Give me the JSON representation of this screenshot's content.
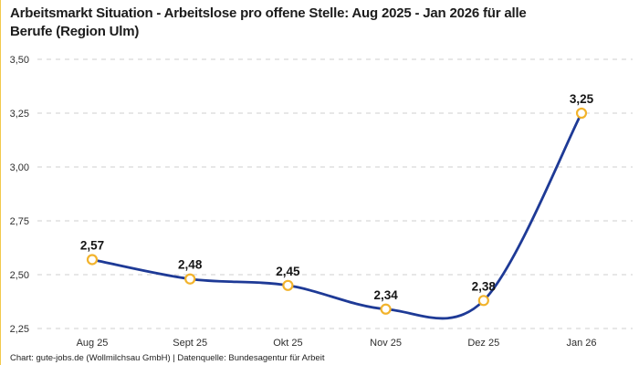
{
  "accent_color": "#F2C94C",
  "header": {
    "title_line1": "Arbeitsmarkt Situation - Arbeitslose pro offene Stelle: Aug 2025 - Jan 2026 für alle",
    "title_line2": "Berufe (Region Ulm)"
  },
  "footer": {
    "credit": "Chart: gute-jobs.de (Wollmilchsau GmbH) | Datenquelle: Bundesagentur für Arbeit"
  },
  "chart_data": {
    "type": "line",
    "title": "Arbeitsmarkt Situation - Arbeitslose pro offene Stelle: Aug 2025 - Jan 2026 für alle Berufe (Region Ulm)",
    "categories": [
      "Aug 25",
      "Sept 25",
      "Okt 25",
      "Nov 25",
      "Dez 25",
      "Jan 26"
    ],
    "values": [
      2.57,
      2.48,
      2.45,
      2.34,
      2.38,
      3.25
    ],
    "value_labels": [
      "2,57",
      "2,48",
      "2,45",
      "2,34",
      "2,38",
      "3,25"
    ],
    "xlabel": "",
    "ylabel": "",
    "ylim": [
      2.25,
      3.5
    ],
    "yticks": [
      3.5,
      3.25,
      3.0,
      2.75,
      2.5,
      2.25
    ],
    "ytick_labels": [
      "3,50",
      "3,25",
      "3,00",
      "2,75",
      "2,50",
      "2,25"
    ],
    "grid": "horizontal-dashed",
    "legend": "none",
    "smooth": true,
    "line_color": "#1E3A96",
    "marker_color": "#F2B32C",
    "marker_fill": "#FFFFFF",
    "grid_color": "#CFCFCF"
  }
}
